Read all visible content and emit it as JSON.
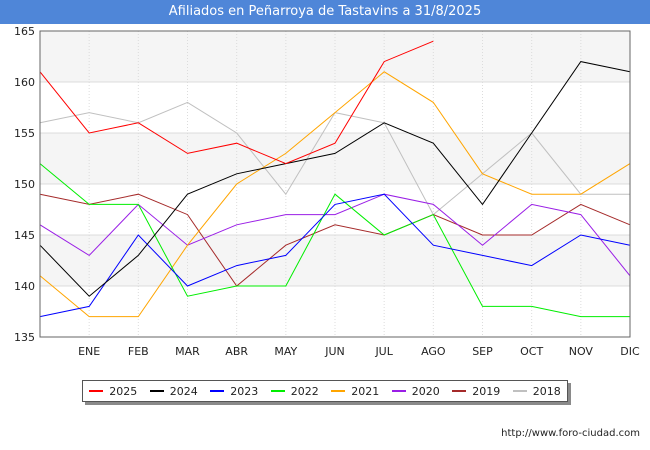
{
  "chart_data": {
    "type": "line",
    "title": "Afiliados en Peñarroya de Tastavins a 31/8/2025",
    "categories": [
      "",
      "ENE",
      "FEB",
      "MAR",
      "ABR",
      "MAY",
      "JUN",
      "JUL",
      "AGO",
      "SEP",
      "OCT",
      "NOV",
      "DIC"
    ],
    "ylim": [
      135,
      165
    ],
    "yticks": [
      135,
      140,
      145,
      150,
      155,
      160,
      165
    ],
    "grid": true,
    "legend_position": "bottom",
    "series": [
      {
        "name": "2025",
        "color": "#ff0000",
        "values": [
          161,
          155,
          156,
          153,
          154,
          152,
          154,
          162,
          164,
          null,
          null,
          null,
          null
        ]
      },
      {
        "name": "2024",
        "color": "#000000",
        "values": [
          144,
          139,
          143,
          149,
          151,
          152,
          153,
          156,
          154,
          148,
          155,
          162,
          161
        ]
      },
      {
        "name": "2023",
        "color": "#0000ff",
        "values": [
          137,
          138,
          145,
          140,
          142,
          143,
          148,
          149,
          144,
          143,
          142,
          145,
          144
        ]
      },
      {
        "name": "2022",
        "color": "#00ee00",
        "values": [
          152,
          148,
          148,
          139,
          140,
          140,
          149,
          145,
          147,
          138,
          138,
          137,
          137
        ]
      },
      {
        "name": "2021",
        "color": "#ffa500",
        "values": [
          141,
          137,
          137,
          144,
          150,
          153,
          157,
          161,
          158,
          151,
          149,
          149,
          152
        ]
      },
      {
        "name": "2020",
        "color": "#9a1ee6",
        "values": [
          146,
          143,
          148,
          144,
          146,
          147,
          147,
          149,
          148,
          144,
          148,
          147,
          141
        ]
      },
      {
        "name": "2019",
        "color": "#a52a2a",
        "values": [
          149,
          148,
          149,
          147,
          140,
          144,
          146,
          145,
          147,
          145,
          145,
          148,
          146
        ]
      },
      {
        "name": "2018",
        "color": "#c0c0c0",
        "values": [
          156,
          157,
          156,
          158,
          155,
          149,
          157,
          156,
          147,
          151,
          155,
          149,
          149
        ]
      }
    ]
  },
  "source": "http://www.foro-ciudad.com"
}
